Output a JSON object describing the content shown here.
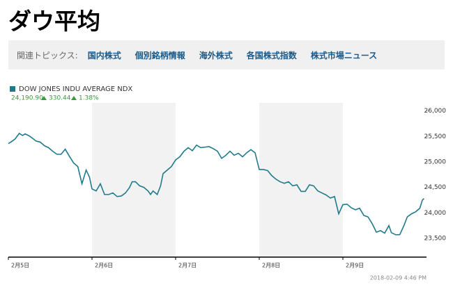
{
  "header": {
    "title": "ダウ平均"
  },
  "topics": {
    "label": "関連トピックス:",
    "links": [
      "国内株式",
      "個別銘柄情報",
      "海外株式",
      "各国株式指数",
      "株式市場ニュース"
    ]
  },
  "chart_data": {
    "type": "line",
    "quote": {
      "last": "24,190.90",
      "change": "330.44",
      "change_pct": "1.38%"
    },
    "timestamp": "2018-02-09 4:46 PM",
    "x": [
      0,
      0.03,
      0.08,
      0.13,
      0.17,
      0.2,
      0.25,
      0.3,
      0.33,
      0.38,
      0.43,
      0.48,
      0.53,
      0.58,
      0.63,
      0.68,
      0.73,
      0.78,
      0.83,
      0.88,
      0.93,
      0.97,
      1,
      1.05,
      1.1,
      1.15,
      1.2,
      1.25,
      1.3,
      1.35,
      1.4,
      1.45,
      1.48,
      1.52,
      1.57,
      1.62,
      1.67,
      1.7,
      1.73,
      1.78,
      1.82,
      1.85,
      1.9,
      1.95,
      2,
      2.05,
      2.1,
      2.15,
      2.2,
      2.25,
      2.3,
      2.35,
      2.4,
      2.45,
      2.5,
      2.55,
      2.6,
      2.65,
      2.7,
      2.75,
      2.8,
      2.85,
      2.9,
      2.95,
      3,
      3.05,
      3.1,
      3.15,
      3.2,
      3.25,
      3.3,
      3.35,
      3.4,
      3.45,
      3.5,
      3.55,
      3.6,
      3.65,
      3.7,
      3.75,
      3.8,
      3.85,
      3.9,
      3.95,
      4,
      4.05,
      4.1,
      4.15,
      4.2,
      4.25,
      4.3,
      4.35,
      4.4,
      4.45,
      4.5,
      4.55,
      4.58,
      4.63,
      4.68,
      4.73,
      4.77,
      4.82,
      4.87,
      4.92,
      4.95,
      4.97
    ],
    "series": [
      {
        "name": "DOW JONES INDU AVERAGE NDX",
        "color": "#1f7a8c",
        "values": [
          25360,
          25390,
          25450,
          25560,
          25520,
          25550,
          25510,
          25450,
          25410,
          25390,
          25320,
          25280,
          25210,
          25150,
          25150,
          25250,
          25110,
          24980,
          24910,
          24570,
          24840,
          24700,
          24470,
          24430,
          24570,
          24360,
          24360,
          24390,
          24320,
          24330,
          24390,
          24500,
          24610,
          24610,
          24530,
          24500,
          24430,
          24360,
          24430,
          24360,
          24530,
          24770,
          24840,
          24910,
          25040,
          25100,
          25210,
          25280,
          25220,
          25330,
          25280,
          25290,
          25300,
          25260,
          25210,
          25070,
          25130,
          25210,
          25130,
          25170,
          25100,
          25180,
          25240,
          25180,
          24850,
          24850,
          24830,
          24730,
          24660,
          24610,
          24580,
          24610,
          24530,
          24550,
          24420,
          24420,
          24550,
          24530,
          24430,
          24390,
          24350,
          24290,
          24320,
          23980,
          24160,
          24170,
          24100,
          24060,
          24090,
          23950,
          23920,
          23790,
          23620,
          23650,
          23600,
          23750,
          23610,
          23570,
          23570,
          23750,
          23920,
          23980,
          24020,
          24090,
          24250,
          24280
        ]
      }
    ],
    "xlim": [
      0,
      5
    ],
    "xticks": [
      {
        "value": 0,
        "label": "2月5日"
      },
      {
        "value": 1,
        "label": "2月6日"
      },
      {
        "value": 2,
        "label": "2月7日"
      },
      {
        "value": 3,
        "label": "2月8日"
      },
      {
        "value": 4,
        "label": "2月9日"
      }
    ],
    "ylim": [
      23130,
      26160
    ],
    "yticks": [
      {
        "value": 23500,
        "label": "23,500"
      },
      {
        "value": 24000,
        "label": "24,000"
      },
      {
        "value": 24500,
        "label": "24,500"
      },
      {
        "value": 25000,
        "label": "25,000"
      },
      {
        "value": 25500,
        "label": "25,500"
      },
      {
        "value": 26000,
        "label": "26,000"
      }
    ]
  }
}
